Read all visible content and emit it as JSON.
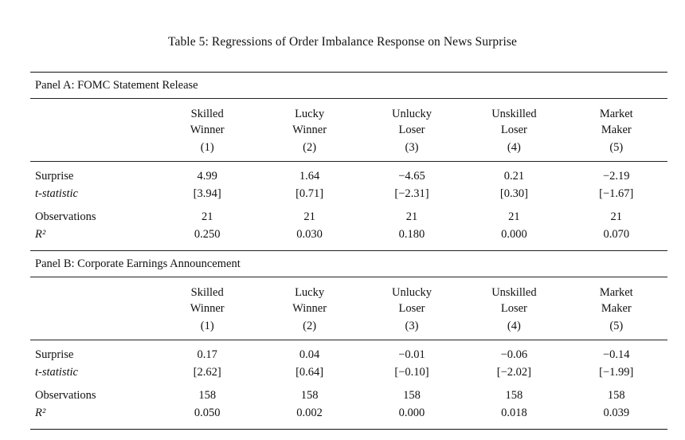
{
  "title": "Table 5: Regressions of Order Imbalance Response on News Surprise",
  "chart_data": {
    "type": "table",
    "title": "Table 5: Regressions of Order Imbalance Response on News Surprise",
    "panels": [
      {
        "label": "Panel A: FOMC Statement Release",
        "columns": [
          "Skilled Winner (1)",
          "Lucky Winner (2)",
          "Unlucky Loser (3)",
          "Unskilled Loser (4)",
          "Market Maker (5)"
        ],
        "surprise": [
          4.99,
          1.64,
          -4.65,
          0.21,
          -2.19
        ],
        "t_statistic": [
          3.94,
          0.71,
          -2.31,
          0.3,
          -1.67
        ],
        "observations": [
          21,
          21,
          21,
          21,
          21
        ],
        "r_squared": [
          0.25,
          0.03,
          0.18,
          0.0,
          0.07
        ]
      },
      {
        "label": "Panel B: Corporate Earnings Announcement",
        "columns": [
          "Skilled Winner (1)",
          "Lucky Winner (2)",
          "Unlucky Loser (3)",
          "Unskilled Loser (4)",
          "Market Maker (5)"
        ],
        "surprise": [
          0.17,
          0.04,
          -0.01,
          -0.06,
          -0.14
        ],
        "t_statistic": [
          2.62,
          0.64,
          -0.1,
          -2.02,
          -1.99
        ],
        "observations": [
          158,
          158,
          158,
          158,
          158
        ],
        "r_squared": [
          0.05,
          0.002,
          0.0,
          0.018,
          0.039
        ]
      }
    ]
  },
  "panels": [
    {
      "label": "Panel A: FOMC Statement Release",
      "columns": [
        {
          "l1": "Skilled",
          "l2": "Winner",
          "l3": "(1)"
        },
        {
          "l1": "Lucky",
          "l2": "Winner",
          "l3": "(2)"
        },
        {
          "l1": "Unlucky",
          "l2": "Loser",
          "l3": "(3)"
        },
        {
          "l1": "Unskilled",
          "l2": "Loser",
          "l3": "(4)"
        },
        {
          "l1": "Market",
          "l2": "Maker",
          "l3": "(5)"
        }
      ],
      "rows": [
        {
          "label": "Surprise",
          "values": [
            "4.99",
            "1.64",
            "−4.65",
            "0.21",
            "−2.19"
          ]
        },
        {
          "label": "t-statistic",
          "values": [
            "[3.94]",
            "[0.71]",
            "[−2.31]",
            "[0.30]",
            "[−1.67]"
          ]
        },
        {
          "label": "Observations",
          "values": [
            "21",
            "21",
            "21",
            "21",
            "21"
          ]
        },
        {
          "label": "R²",
          "values": [
            "0.250",
            "0.030",
            "0.180",
            "0.000",
            "0.070"
          ]
        }
      ]
    },
    {
      "label": "Panel B: Corporate Earnings Announcement",
      "columns": [
        {
          "l1": "Skilled",
          "l2": "Winner",
          "l3": "(1)"
        },
        {
          "l1": "Lucky",
          "l2": "Winner",
          "l3": "(2)"
        },
        {
          "l1": "Unlucky",
          "l2": "Loser",
          "l3": "(3)"
        },
        {
          "l1": "Unskilled",
          "l2": "Loser",
          "l3": "(4)"
        },
        {
          "l1": "Market",
          "l2": "Maker",
          "l3": "(5)"
        }
      ],
      "rows": [
        {
          "label": "Surprise",
          "values": [
            "0.17",
            "0.04",
            "−0.01",
            "−0.06",
            "−0.14"
          ]
        },
        {
          "label": "t-statistic",
          "values": [
            "[2.62]",
            "[0.64]",
            "[−0.10]",
            "[−2.02]",
            "[−1.99]"
          ]
        },
        {
          "label": "Observations",
          "values": [
            "158",
            "158",
            "158",
            "158",
            "158"
          ]
        },
        {
          "label": "R²",
          "values": [
            "0.050",
            "0.002",
            "0.000",
            "0.018",
            "0.039"
          ]
        }
      ]
    }
  ]
}
